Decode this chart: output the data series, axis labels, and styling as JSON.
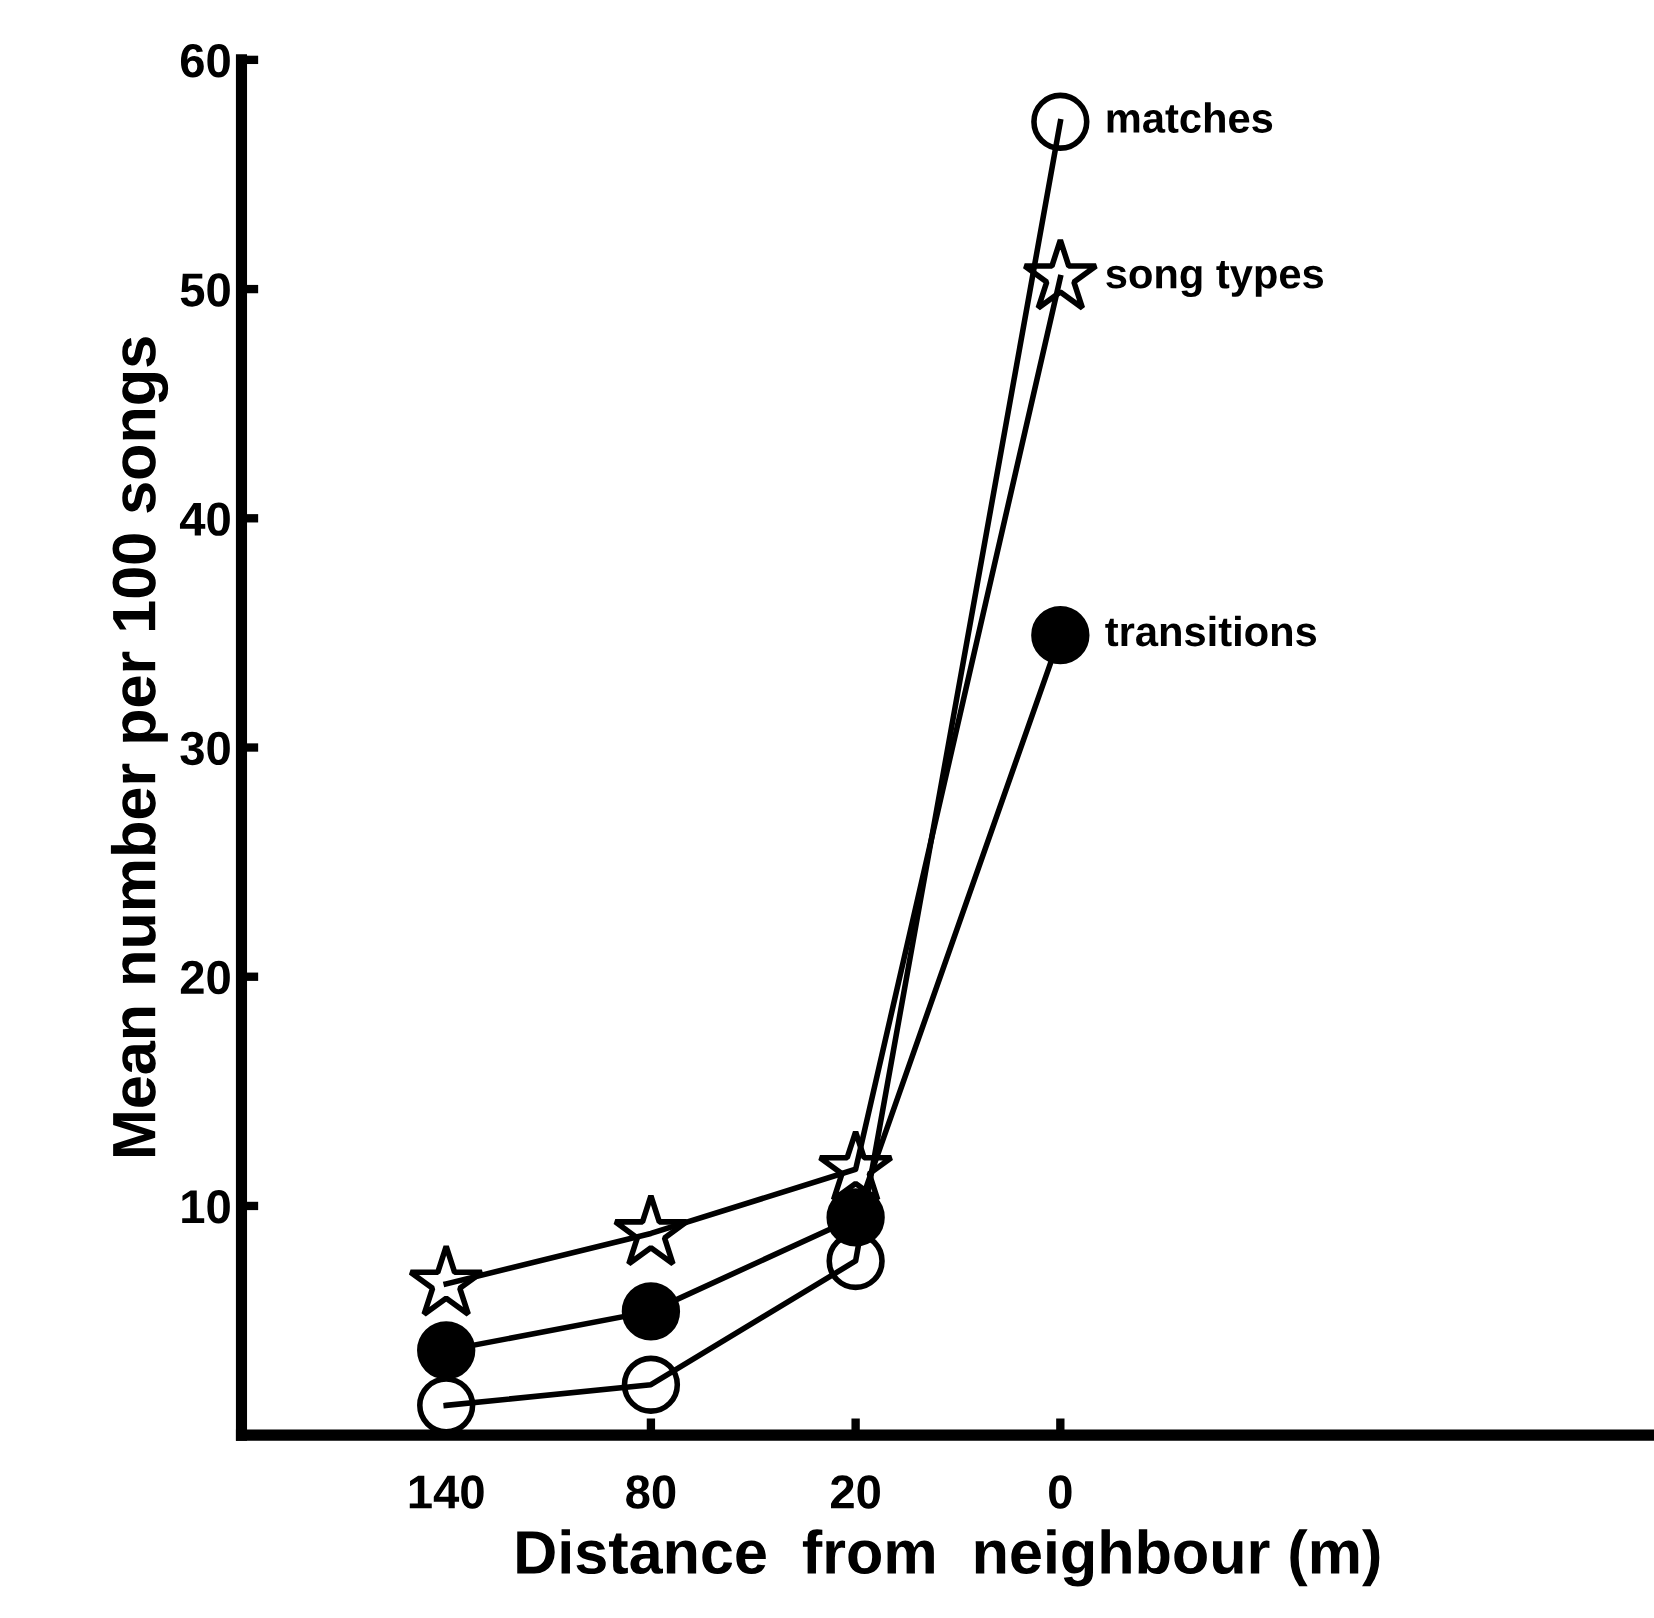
{
  "chart_data": {
    "type": "line",
    "xlabel": "Distance  from  neighbour (m)",
    "ylabel": "Mean number per 100 songs",
    "categories": [
      "140",
      "80",
      "20",
      "0"
    ],
    "series": [
      {
        "name": "matches",
        "color": "#ffffff",
        "marker": "circle",
        "values": [
          1.3,
          2.2,
          7.6,
          57.3
        ]
      },
      {
        "name": "song types",
        "color": "#ffffff",
        "marker": "star",
        "values": [
          6.6,
          8.8,
          11.6,
          50.5
        ]
      },
      {
        "name": "transitions",
        "color": "#000000",
        "marker": "circle",
        "values": [
          3.7,
          5.4,
          9.5,
          34.9
        ]
      }
    ],
    "ylim": [
      0,
      60
    ],
    "yticks": [
      {
        "value": 0,
        "label": null
      },
      10,
      20,
      30,
      40,
      50,
      60
    ],
    "grid": false,
    "legend": false,
    "line_style": "solid"
  }
}
